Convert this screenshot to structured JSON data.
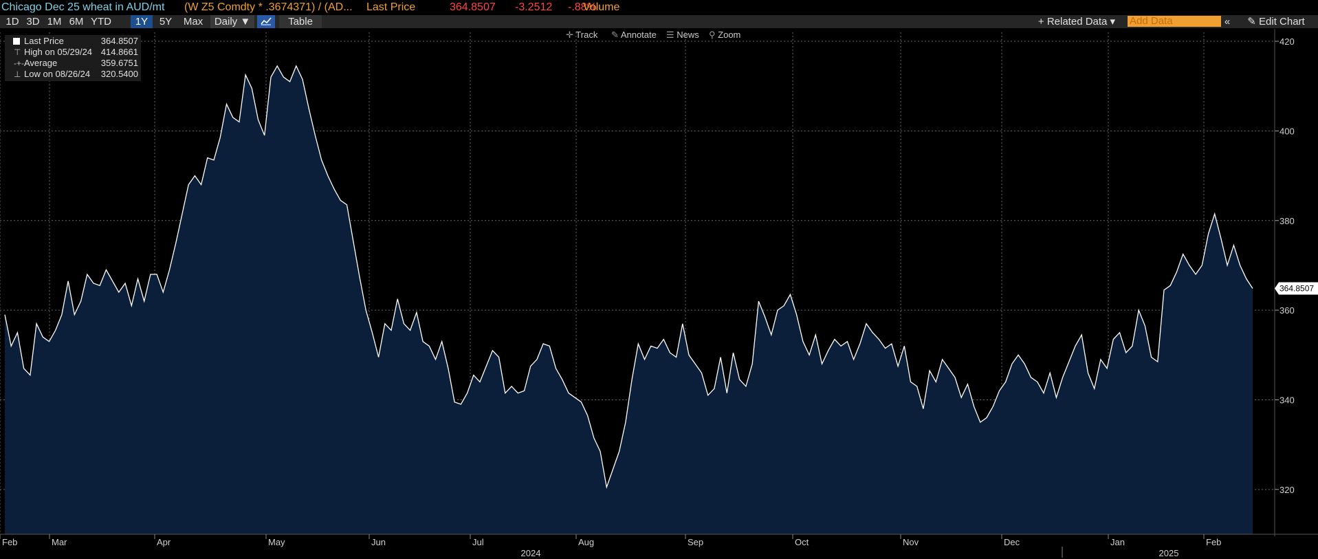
{
  "header": {
    "title": "Chicago Dec 25 wheat in AUD/mt",
    "ticker": "(W Z5 Comdty * .3674371) / (AD...",
    "last_price_label": "Last Price",
    "last_price": "364.8507",
    "change": "-3.2512",
    "change_pct": "-.88%",
    "volume_label": "Volume"
  },
  "toolbar": {
    "periods": [
      "1D",
      "3D",
      "1M",
      "6M",
      "YTD",
      "1Y",
      "5Y",
      "Max"
    ],
    "active_period": "1Y",
    "frequency": "Daily ▼",
    "table_label": "Table",
    "related_data": "+ Related Data ▾",
    "add_data_placeholder": "Add Data",
    "collapse": "«",
    "edit_chart": "✎ Edit Chart"
  },
  "tools": {
    "track": "Track",
    "annotate": "Annotate",
    "news": "News",
    "zoom": "Zoom"
  },
  "legend": {
    "last_label": "Last Price",
    "last_value": "364.8507",
    "high_label": "High on 05/29/24",
    "high_value": "414.8661",
    "avg_label": "Average",
    "avg_value": "359.6751",
    "low_label": "Low on 08/26/24",
    "low_value": "320.5400"
  },
  "colors": {
    "line": "#ffffff",
    "area_fill": "#0c1f3a",
    "grid": "#6a6a6a",
    "title": "#7fd1e8",
    "ticker": "#f0a030",
    "negative": "#ff4444",
    "active_button": "#1d4f8f"
  },
  "chart_data": {
    "type": "area",
    "series": [
      {
        "name": "Last Price",
        "values": [
          359.0,
          352.0,
          355.0,
          347.0,
          345.5,
          357.0,
          354.0,
          353.0,
          355.5,
          359.0,
          366.5,
          359.0,
          362.0,
          368.0,
          366.0,
          365.5,
          369.0,
          366.5,
          364.0,
          366.0,
          361.0,
          367.0,
          362.0,
          368.0,
          368.0,
          364.0,
          369.0,
          375.0,
          381.5,
          388.0,
          390.0,
          388.0,
          394.0,
          393.5,
          398.5,
          406.0,
          403.0,
          402.0,
          412.5,
          409.5,
          402.5,
          399.0,
          412.0,
          414.5,
          412.0,
          411.0,
          414.5,
          411.5,
          405.0,
          399.0,
          393.5,
          390.0,
          387.0,
          384.5,
          383.5,
          375.5,
          367.5,
          360.0,
          355.0,
          349.5,
          357.0,
          355.5,
          362.5,
          357.0,
          355.5,
          359.5,
          353.0,
          352.0,
          349.0,
          353.0,
          347.0,
          339.5,
          339.0,
          341.5,
          345.5,
          344.0,
          347.5,
          351.0,
          349.5,
          341.5,
          343.0,
          341.5,
          342.0,
          347.5,
          349.0,
          352.5,
          352.0,
          347.0,
          344.5,
          341.5,
          340.5,
          339.5,
          336.5,
          331.5,
          328.5,
          320.5,
          324.5,
          328.5,
          335.0,
          344.5,
          352.5,
          349.0,
          352.0,
          351.5,
          353.5,
          350.5,
          349.5,
          357.0,
          350.0,
          348.0,
          346.0,
          341.0,
          342.5,
          349.5,
          341.5,
          350.5,
          344.5,
          343.0,
          348.0,
          362.0,
          358.5,
          354.5,
          360.0,
          361.0,
          363.5,
          359.0,
          353.0,
          350.0,
          354.5,
          348.0,
          351.0,
          353.5,
          352.0,
          353.0,
          349.0,
          352.5,
          357.0,
          355.0,
          353.5,
          351.5,
          352.5,
          347.5,
          352.0,
          344.0,
          343.0,
          338.0,
          346.5,
          344.0,
          349.0,
          347.0,
          345.0,
          340.5,
          343.5,
          338.5,
          335.0,
          336.0,
          338.5,
          342.0,
          344.0,
          348.0,
          350.0,
          348.0,
          345.0,
          344.0,
          341.5,
          346.0,
          340.5,
          345.0,
          348.5,
          352.0,
          354.5,
          346.0,
          342.5,
          349.0,
          347.0,
          353.5,
          355.0,
          350.5,
          352.0,
          360.0,
          356.5,
          349.5,
          348.5,
          364.5,
          365.5,
          368.5,
          372.5,
          370.0,
          368.0,
          370.0,
          377.0,
          381.5,
          376.0,
          370.0,
          374.5,
          370.0,
          367.0,
          364.8507
        ]
      }
    ],
    "y_axis": {
      "min": 310,
      "max": 422,
      "ticks": [
        320,
        340,
        360,
        380,
        400,
        420
      ],
      "side": "right"
    },
    "x_axis": {
      "months": [
        "Feb",
        "Mar",
        "Apr",
        "May",
        "Jun",
        "Jul",
        "Aug",
        "Sep",
        "Oct",
        "Nov",
        "Dec",
        "Jan",
        "Feb"
      ],
      "years": [
        "2024",
        "2025"
      ]
    },
    "last_value_label": "364.8507",
    "grid": true
  }
}
